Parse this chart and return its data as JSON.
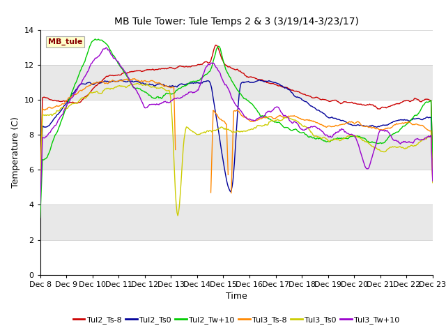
{
  "title": "MB Tule Tower: Tule Temps 2 & 3 (3/19/14-3/23/17)",
  "xlabel": "Time",
  "ylabel": "Temperature (C)",
  "xlim": [
    0,
    15
  ],
  "ylim": [
    0,
    14
  ],
  "yticks": [
    0,
    2,
    4,
    6,
    8,
    10,
    12,
    14
  ],
  "xtick_labels": [
    "Dec 8",
    "Dec 9",
    "Dec 10",
    "Dec 11",
    "Dec 12",
    "Dec 13",
    "Dec 14",
    "Dec 15",
    "Dec 16",
    "Dec 17",
    "Dec 18",
    "Dec 19",
    "Dec 20",
    "Dec 21",
    "Dec 22",
    "Dec 23"
  ],
  "legend_entries": [
    "Tul2_Ts-8",
    "Tul2_Ts0",
    "Tul2_Tw+10",
    "Tul3_Ts-8",
    "Tul3_Ts0",
    "Tul3_Tw+10"
  ],
  "line_colors": [
    "#cc0000",
    "#000099",
    "#00cc00",
    "#ff8800",
    "#cccc00",
    "#9900cc"
  ],
  "annotation_text": "MB_tule",
  "annotation_box_color": "#ffffcc",
  "annotation_text_color": "#880000",
  "bg_band_color": "#e8e8e8",
  "title_fontsize": 10,
  "axis_fontsize": 9,
  "tick_fontsize": 8
}
